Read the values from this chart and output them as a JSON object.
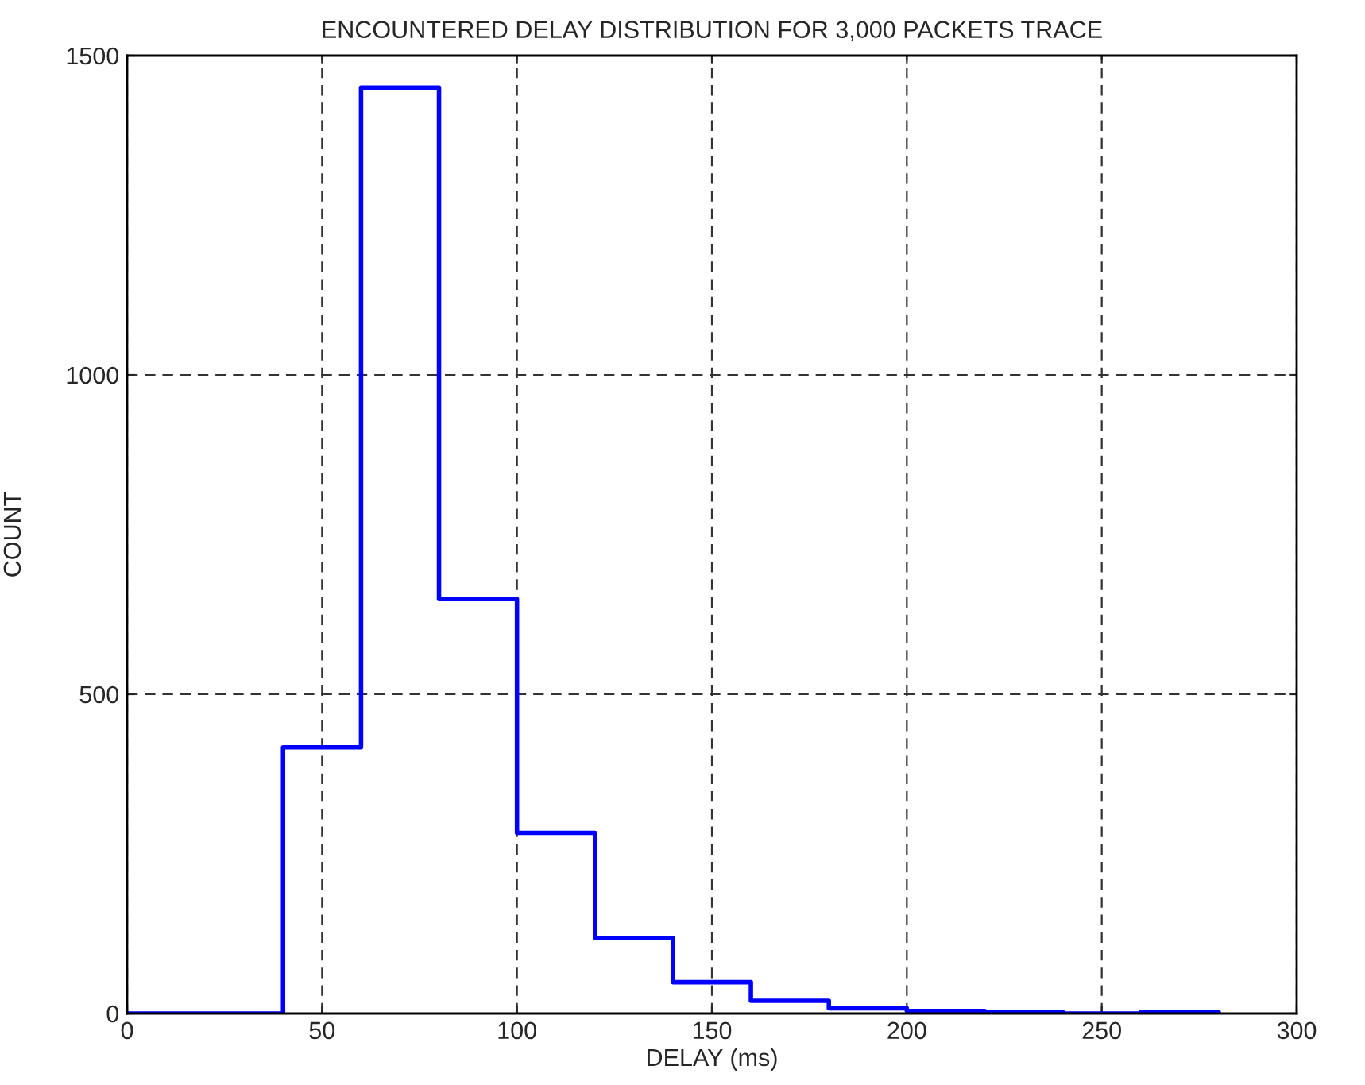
{
  "chart_data": {
    "type": "histogram",
    "title": "ENCOUNTERED DELAY DISTRIBUTION FOR 3,000 PACKETS TRACE",
    "xlabel": "DELAY (ms)",
    "ylabel": "COUNT",
    "bins": [
      0,
      20,
      40,
      60,
      80,
      100,
      120,
      140,
      160,
      180,
      200,
      220,
      240,
      260,
      280
    ],
    "values": [
      0,
      0,
      417,
      1450,
      649,
      283,
      118,
      49,
      20,
      8,
      4,
      2,
      0,
      2
    ],
    "color": "#0000ff",
    "xlim": [
      0,
      300
    ],
    "ylim": [
      0,
      1500
    ],
    "xticks": [
      0,
      50,
      100,
      150,
      200,
      250,
      300
    ],
    "yticks": [
      0,
      500,
      1000,
      1500
    ],
    "grid": true,
    "line_style": "solid"
  }
}
